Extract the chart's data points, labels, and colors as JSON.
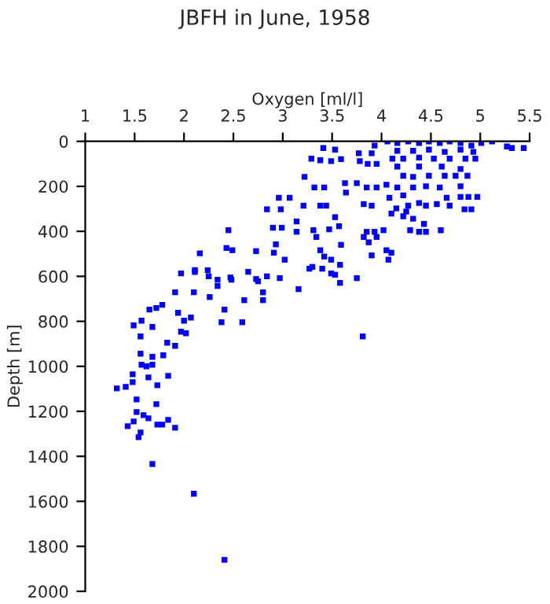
{
  "chart_data": {
    "type": "scatter",
    "title": "JBFH in June, 1958",
    "xlabel": "Oxygen [ml/l]",
    "ylabel": "Depth [m]",
    "xlim": [
      1,
      5.5
    ],
    "xticks": [
      1,
      1.5,
      2,
      2.5,
      3,
      3.5,
      4,
      4.5,
      5,
      5.5
    ],
    "ylim": [
      2000,
      0
    ],
    "yticks": [
      0,
      200,
      400,
      600,
      800,
      1000,
      1200,
      1400,
      1600,
      1800,
      2000
    ],
    "grid": false,
    "marker": "square",
    "series": [
      {
        "color": "#0000ff",
        "x": [
          1.97,
          2.11,
          2.24,
          1.91,
          2.1,
          1.65,
          1.72,
          1.78,
          1.49,
          1.57,
          1.56,
          1.68,
          1.94,
          2.0,
          2.07,
          1.97,
          2.02,
          1.83,
          1.91,
          1.56,
          1.68,
          1.57,
          1.62,
          1.68,
          1.79,
          1.48,
          1.48,
          1.32,
          1.41,
          1.64,
          1.73,
          1.84,
          1.52,
          1.72,
          1.52,
          1.59,
          1.64,
          1.43,
          1.49,
          1.56,
          1.54,
          1.73,
          1.78,
          1.84,
          1.91,
          1.68,
          2.1,
          3.81,
          2.34,
          2.48,
          2.34,
          2.26,
          2.41,
          2.38,
          2.59,
          2.61,
          2.65,
          2.75,
          2.8,
          2.8,
          2.97,
          3.16,
          3.27,
          3.4,
          3.49,
          3.58,
          3.75,
          2.41,
          2.16,
          2.11,
          2.25,
          2.47,
          2.45,
          2.43,
          2.49,
          2.73,
          2.73,
          2.84,
          2.84,
          2.98,
          2.96,
          3.07,
          2.9,
          2.99,
          2.93,
          2.91,
          3.02,
          3.21,
          3.14,
          3.14,
          3.31,
          3.34,
          3.22,
          3.32,
          3.42,
          3.29,
          3.38,
          3.41,
          3.49,
          3.53,
          3.59,
          3.47,
          3.38,
          3.3,
          3.42,
          3.49,
          3.58,
          3.53,
          3.38,
          3.44,
          3.53,
          3.64,
          3.63,
          3.75,
          3.59,
          3.57,
          3.78,
          3.86,
          3.95,
          3.77,
          3.93,
          3.9,
          3.85,
          3.82,
          3.9,
          3.85,
          3.93,
          4.02,
          3.87,
          3.82,
          3.95,
          4.05,
          3.9,
          4.07,
          4.1,
          3.95,
          4.05,
          4.08,
          4.1,
          4.06,
          4.16,
          4.27,
          4.38,
          4.48,
          4.59,
          4.69,
          4.8,
          4.91,
          5.01,
          5.12,
          5.27,
          5.32,
          5.44,
          4.16,
          4.32,
          4.48,
          4.64,
          4.8,
          4.93,
          4.22,
          4.38,
          4.53,
          4.69,
          4.85,
          4.95,
          4.11,
          4.16,
          4.38,
          4.61,
          4.8,
          4.22,
          4.32,
          4.48,
          4.64,
          4.75,
          4.87,
          4.32,
          4.45,
          4.59,
          4.8,
          4.16,
          4.22,
          4.27,
          4.38,
          4.45,
          4.56,
          4.66,
          4.8,
          4.88,
          4.97,
          4.69,
          4.84,
          4.91,
          4.22,
          4.32,
          4.43,
          4.29,
          4.38,
          4.45,
          4.6,
          4.25,
          4.15
        ],
        "values": [
          587,
          581,
          573,
          671,
          671,
          748,
          741,
          727,
          818,
          797,
          867,
          825,
          762,
          797,
          783,
          846,
          853,
          895,
          909,
          944,
          958,
          993,
          1000,
          993,
          951,
          1035,
          1070,
          1098,
          1091,
          1049,
          1084,
          1042,
          1147,
          1168,
          1203,
          1217,
          1231,
          1266,
          1245,
          1294,
          1315,
          1259,
          1259,
          1238,
          1273,
          1434,
          1566,
          867,
          615,
          615,
          643,
          692,
          748,
          804,
          804,
          706,
          580,
          622,
          671,
          706,
          608,
          657,
          566,
          566,
          587,
          629,
          608,
          1860,
          498,
          572,
          600,
          605,
          395,
          474,
          484,
          488,
          612,
          600,
          302,
          302,
          251,
          251,
          384,
          384,
          458,
          495,
          526,
          286,
          356,
          402,
          395,
          425,
          158,
          205,
          205,
          77,
          84,
          30,
          88,
          37,
          79,
          391,
          484,
          558,
          512,
          526,
          549,
          593,
          286,
          286,
          337,
          228,
          186,
          186,
          460,
          377,
          88,
          100,
          100,
          53,
          19,
          53,
          205,
          279,
          286,
          402,
          402,
          395,
          449,
          425,
          425,
          484,
          507,
          526,
          495,
          205,
          193,
          251,
          321,
          0,
          7,
          0,
          7,
          0,
          7,
          0,
          7,
          19,
          7,
          0,
          23,
          30,
          30,
          42,
          42,
          37,
          47,
          37,
          47,
          77,
          72,
          77,
          77,
          77,
          77,
          77,
          112,
          112,
          112,
          123,
          153,
          158,
          153,
          153,
          153,
          153,
          205,
          200,
          205,
          200,
          205,
          240,
          286,
          274,
          286,
          279,
          251,
          247,
          247,
          247,
          286,
          302,
          302,
          333,
          344,
          367,
          395,
          402,
          402,
          395,
          312,
          298
        ]
      }
    ]
  }
}
